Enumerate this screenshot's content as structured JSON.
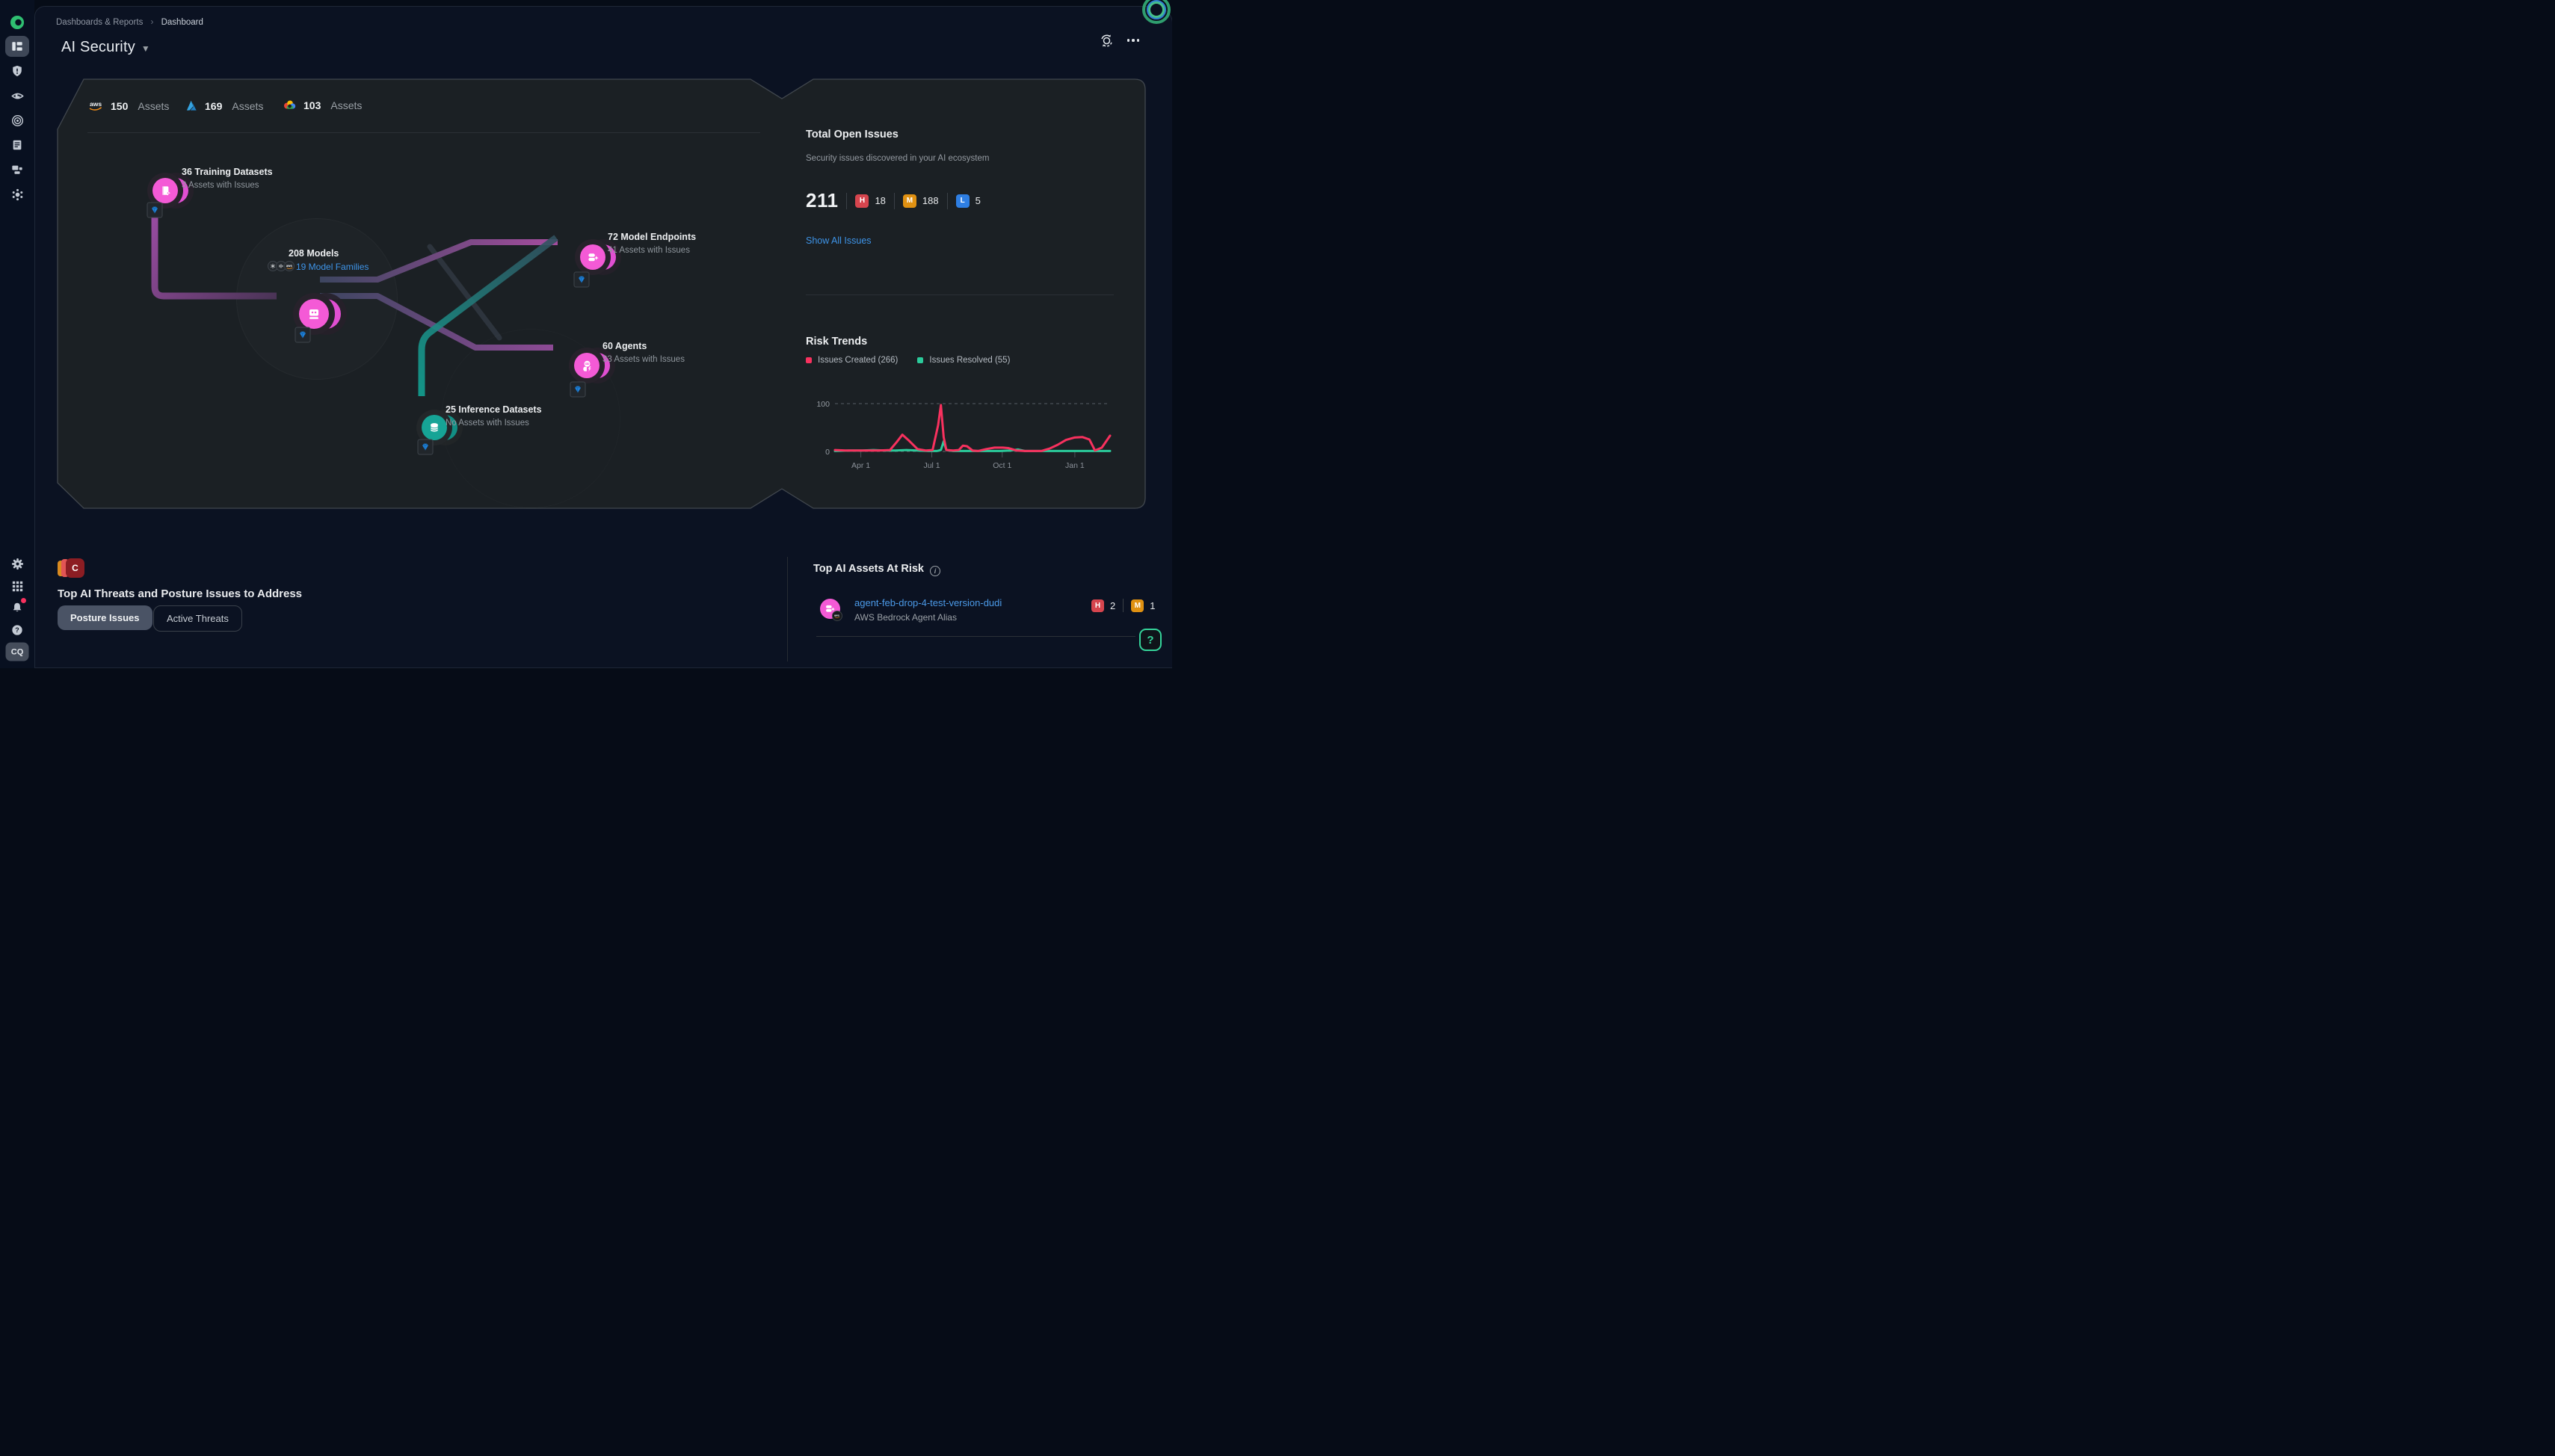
{
  "app": {
    "breadcrumb": [
      "Dashboards & Reports",
      "Dashboard"
    ],
    "title": "AI Security",
    "avatar": "CQ",
    "help": "?"
  },
  "logos": {
    "aws": "aws"
  },
  "providers": {
    "aws": {
      "count": "150",
      "word": "Assets"
    },
    "azure": {
      "count": "169",
      "word": "Assets"
    },
    "gcp": {
      "count": "103",
      "word": "Assets"
    }
  },
  "graph": {
    "nodes": {
      "training": {
        "title": "36 Training Datasets",
        "subtitle": "3 Assets with Issues"
      },
      "models": {
        "title": "208 Models",
        "families_link": "19 Model Families"
      },
      "endpoints": {
        "title": "72 Model Endpoints",
        "subtitle": "41 Assets with Issues"
      },
      "agents": {
        "title": "60 Agents",
        "subtitle": "33 Assets with Issues"
      },
      "inference": {
        "title": "25 Inference Datasets",
        "subtitle": "No Assets with Issues"
      }
    }
  },
  "issues": {
    "heading": "Total Open Issues",
    "subtitle": "Security issues discovered in your AI ecosystem",
    "total": "211",
    "high_letter": "H",
    "high_count": "18",
    "medium_letter": "M",
    "medium_count": "188",
    "low_letter": "L",
    "low_count": "5",
    "show_all": "Show All Issues"
  },
  "risk_trends": {
    "heading": "Risk Trends"
  },
  "chart_data": {
    "type": "line",
    "title": "Risk Trends",
    "xlabel": "",
    "ylabel": "",
    "ylim": [
      0,
      100
    ],
    "yticks": [
      "0",
      "100"
    ],
    "grid": "dashed horizontal lines at y=0 and y=100",
    "legend_position": "top-left",
    "x_ticks": [
      {
        "label": "Apr 1",
        "f": 0.094
      },
      {
        "label": "Jul 1",
        "f": 0.352
      },
      {
        "label": "Oct 1",
        "f": 0.608
      },
      {
        "label": "Jan 1",
        "f": 0.872
      }
    ],
    "series": [
      {
        "name": "Issues Created (266)",
        "color": "#f8315e",
        "points": [
          [
            0,
            3
          ],
          [
            0.04,
            2
          ],
          [
            0.08,
            2
          ],
          [
            0.12,
            2
          ],
          [
            0.16,
            2
          ],
          [
            0.2,
            3
          ],
          [
            0.225,
            20
          ],
          [
            0.245,
            35
          ],
          [
            0.27,
            22
          ],
          [
            0.3,
            5
          ],
          [
            0.33,
            2
          ],
          [
            0.355,
            3
          ],
          [
            0.375,
            55
          ],
          [
            0.385,
            97
          ],
          [
            0.395,
            30
          ],
          [
            0.405,
            3
          ],
          [
            0.43,
            2
          ],
          [
            0.45,
            3
          ],
          [
            0.465,
            12
          ],
          [
            0.48,
            11
          ],
          [
            0.5,
            2
          ],
          [
            0.52,
            1
          ],
          [
            0.55,
            5
          ],
          [
            0.58,
            8
          ],
          [
            0.61,
            8
          ],
          [
            0.63,
            7
          ],
          [
            0.66,
            2
          ],
          [
            0.69,
            1
          ],
          [
            0.72,
            1
          ],
          [
            0.75,
            1
          ],
          [
            0.78,
            6
          ],
          [
            0.81,
            14
          ],
          [
            0.84,
            24
          ],
          [
            0.87,
            29
          ],
          [
            0.9,
            30
          ],
          [
            0.925,
            25
          ],
          [
            0.945,
            2
          ],
          [
            0.97,
            8
          ],
          [
            1,
            33
          ]
        ]
      },
      {
        "name": "Issues Resolved (55)",
        "color": "#2bcb9b",
        "points": [
          [
            0,
            1
          ],
          [
            0.05,
            2
          ],
          [
            0.1,
            2
          ],
          [
            0.14,
            3
          ],
          [
            0.18,
            2
          ],
          [
            0.22,
            2
          ],
          [
            0.26,
            3
          ],
          [
            0.3,
            2
          ],
          [
            0.34,
            1
          ],
          [
            0.37,
            1
          ],
          [
            0.385,
            3
          ],
          [
            0.395,
            21
          ],
          [
            0.405,
            3
          ],
          [
            0.43,
            1
          ],
          [
            0.47,
            1
          ],
          [
            0.51,
            1
          ],
          [
            0.55,
            1
          ],
          [
            0.6,
            1
          ],
          [
            0.64,
            2
          ],
          [
            0.665,
            4
          ],
          [
            0.69,
            1
          ],
          [
            0.74,
            1
          ],
          [
            0.79,
            1
          ],
          [
            0.84,
            1
          ],
          [
            0.89,
            1
          ],
          [
            0.94,
            1
          ],
          [
            1,
            1
          ]
        ]
      }
    ]
  },
  "threats": {
    "heading": "Top AI Threats and Posture Issues to Address",
    "tab_posture": "Posture Issues",
    "tab_active": "Active Threats",
    "icon_letter": "C"
  },
  "assets_at_risk": {
    "heading": "Top AI Assets At Risk",
    "row": {
      "name": "agent-feb-drop-4-test-version-dudi",
      "type": "AWS Bedrock Agent Alias",
      "high_letter": "H",
      "high_count": "2",
      "medium_letter": "M",
      "medium_count": "1"
    }
  }
}
